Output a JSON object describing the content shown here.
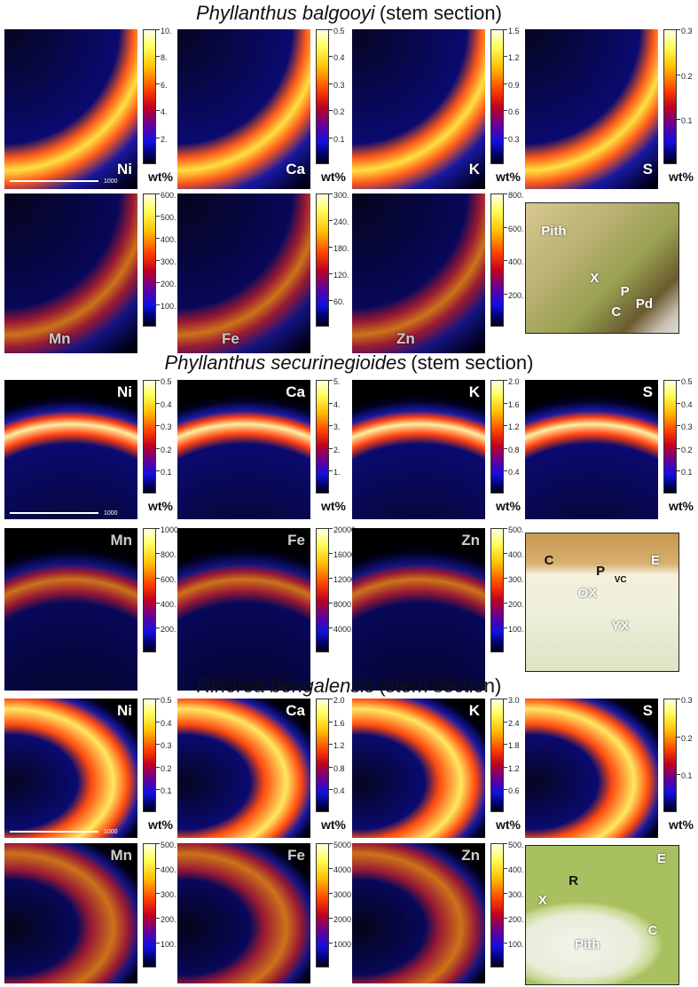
{
  "sections": [
    {
      "title_species": "Phyllanthus balgooyi",
      "title_rest": "(stem section)",
      "scale_bar": "1000",
      "maps": [
        {
          "element": "Ni",
          "ticks": [
            "10.",
            "8.",
            "6.",
            "4.",
            "2."
          ],
          "unit": "wt%"
        },
        {
          "element": "Ca",
          "ticks": [
            "0.5",
            "0.4",
            "0.3",
            "0.2",
            "0.1"
          ],
          "unit": "wt%"
        },
        {
          "element": "K",
          "ticks": [
            "1.5",
            "1.2",
            "0.9",
            "0.6",
            "0.3"
          ],
          "unit": "wt%"
        },
        {
          "element": "S",
          "ticks": [
            "0.3",
            "0.2",
            "0.1"
          ],
          "unit": "wt%"
        },
        {
          "element": "Mn",
          "ticks": [
            "600.",
            "500.",
            "400.",
            "300.",
            "200.",
            "100."
          ]
        },
        {
          "element": "Fe",
          "ticks": [
            "300.",
            "240.",
            "180.",
            "120.",
            "60."
          ]
        },
        {
          "element": "Zn",
          "ticks": [
            "800.",
            "600.",
            "400.",
            "200."
          ]
        }
      ],
      "photo_labels": [
        "Pith",
        "X",
        "P",
        "C",
        "Pd"
      ]
    },
    {
      "title_species": "Phyllanthus securinegioides",
      "title_rest": "(stem section)",
      "scale_bar": "1000",
      "maps": [
        {
          "element": "Ni",
          "ticks": [
            "0.5",
            "0.4",
            "0.3",
            "0.2",
            "0.1"
          ],
          "unit": "wt%"
        },
        {
          "element": "Ca",
          "ticks": [
            "5.",
            "4.",
            "3.",
            "2.",
            "1."
          ],
          "unit": "wt%"
        },
        {
          "element": "K",
          "ticks": [
            "2.0",
            "1.6",
            "1.2",
            "0.8",
            "0.4"
          ],
          "unit": "wt%"
        },
        {
          "element": "S",
          "ticks": [
            "0.5",
            "0.4",
            "0.3",
            "0.2",
            "0.1"
          ],
          "unit": "wt%"
        },
        {
          "element": "Mn",
          "ticks": [
            "1000.",
            "800.",
            "600.",
            "400.",
            "200."
          ]
        },
        {
          "element": "Fe",
          "ticks": [
            "20000.",
            "16000.",
            "12000.",
            "8000.",
            "4000."
          ]
        },
        {
          "element": "Zn",
          "ticks": [
            "500.",
            "400.",
            "300.",
            "200.",
            "100."
          ]
        }
      ],
      "photo_labels": [
        "C",
        "P",
        "VC",
        "OX",
        "YX",
        "E"
      ]
    },
    {
      "title_species": "Rinorea bengalensis",
      "title_rest": "(stem section)",
      "scale_bar": "1000",
      "maps": [
        {
          "element": "Ni",
          "ticks": [
            "0.5",
            "0.4",
            "0.3",
            "0.2",
            "0.1"
          ],
          "unit": "wt%"
        },
        {
          "element": "Ca",
          "ticks": [
            "2.0",
            "1.6",
            "1.2",
            "0.8",
            "0.4"
          ],
          "unit": "wt%"
        },
        {
          "element": "K",
          "ticks": [
            "3.0",
            "2.4",
            "1.8",
            "1.2",
            "0.6"
          ],
          "unit": "wt%"
        },
        {
          "element": "S",
          "ticks": [
            "0.3",
            "0.2",
            "0.1"
          ],
          "unit": "wt%"
        },
        {
          "element": "Mn",
          "ticks": [
            "500.",
            "400.",
            "300.",
            "200.",
            "100."
          ]
        },
        {
          "element": "Fe",
          "ticks": [
            "5000.",
            "4000.",
            "3000.",
            "2000.",
            "1000."
          ]
        },
        {
          "element": "Zn",
          "ticks": [
            "500.",
            "400.",
            "300.",
            "200.",
            "100."
          ]
        }
      ],
      "photo_labels": [
        "X",
        "R",
        "E",
        "C",
        "Pith"
      ]
    }
  ]
}
